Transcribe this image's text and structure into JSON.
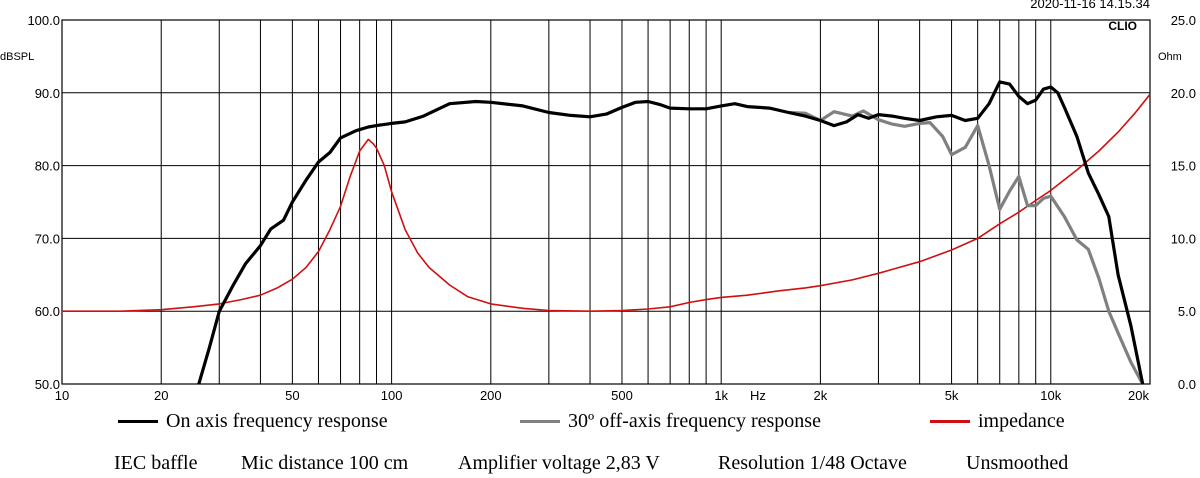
{
  "header": {
    "timestamp": "2020-11-16 14.15.34",
    "brand": "CLIO"
  },
  "chart_data": {
    "type": "line",
    "x_scale": "log",
    "xlim": [
      10,
      20000
    ],
    "ylim_left": [
      50,
      100
    ],
    "ylim_right": [
      0,
      25
    ],
    "left_unit": "dBSPL",
    "right_unit": "Ohm",
    "x_unit": "Hz",
    "grid": true,
    "y_ticks_left": [
      "50.0",
      "60.0",
      "70.0",
      "80.0",
      "90.0",
      "100.0"
    ],
    "y_ticks_right": [
      "0.0",
      "5.0",
      "10.0",
      "15.0",
      "20.0",
      "25.0"
    ],
    "x_ticks": [
      {
        "f": 10,
        "label": "10"
      },
      {
        "f": 20,
        "label": "20"
      },
      {
        "f": 50,
        "label": "50"
      },
      {
        "f": 100,
        "label": "100"
      },
      {
        "f": 200,
        "label": "200"
      },
      {
        "f": 500,
        "label": "500"
      },
      {
        "f": 1000,
        "label": "1k"
      },
      {
        "f": 2000,
        "label": "2k"
      },
      {
        "f": 5000,
        "label": "5k"
      },
      {
        "f": 10000,
        "label": "10k"
      },
      {
        "f": 20000,
        "label": "20k"
      }
    ],
    "series": [
      {
        "name": "On axis frequency response",
        "color": "#000000",
        "axis": "left",
        "points": [
          [
            26,
            50
          ],
          [
            28,
            55
          ],
          [
            30,
            60
          ],
          [
            33,
            63.5
          ],
          [
            36,
            66.5
          ],
          [
            40,
            69
          ],
          [
            43,
            71.3
          ],
          [
            47,
            72.5
          ],
          [
            50,
            75
          ],
          [
            55,
            78
          ],
          [
            60,
            80.5
          ],
          [
            65,
            81.8
          ],
          [
            70,
            83.8
          ],
          [
            78,
            84.8
          ],
          [
            85,
            85.3
          ],
          [
            90,
            85.5
          ],
          [
            100,
            85.8
          ],
          [
            110,
            86
          ],
          [
            125,
            86.8
          ],
          [
            150,
            88.5
          ],
          [
            180,
            88.8
          ],
          [
            200,
            88.7
          ],
          [
            250,
            88.2
          ],
          [
            300,
            87.3
          ],
          [
            350,
            86.9
          ],
          [
            400,
            86.7
          ],
          [
            450,
            87.1
          ],
          [
            500,
            88
          ],
          [
            550,
            88.7
          ],
          [
            600,
            88.8
          ],
          [
            650,
            88.4
          ],
          [
            700,
            87.9
          ],
          [
            800,
            87.8
          ],
          [
            900,
            87.8
          ],
          [
            1000,
            88.2
          ],
          [
            1100,
            88.5
          ],
          [
            1200,
            88.1
          ],
          [
            1400,
            87.9
          ],
          [
            1600,
            87.3
          ],
          [
            1800,
            86.8
          ],
          [
            2000,
            86.2
          ],
          [
            2200,
            85.5
          ],
          [
            2400,
            86
          ],
          [
            2600,
            87
          ],
          [
            2800,
            86.5
          ],
          [
            3000,
            87
          ],
          [
            3300,
            86.8
          ],
          [
            3600,
            86.5
          ],
          [
            4000,
            86.2
          ],
          [
            4500,
            86.7
          ],
          [
            5000,
            86.9
          ],
          [
            5500,
            86.2
          ],
          [
            6000,
            86.5
          ],
          [
            6500,
            88.5
          ],
          [
            7000,
            91.5
          ],
          [
            7500,
            91.2
          ],
          [
            8000,
            89.5
          ],
          [
            8500,
            88.5
          ],
          [
            9000,
            89
          ],
          [
            9500,
            90.5
          ],
          [
            10000,
            90.8
          ],
          [
            10500,
            90
          ],
          [
            11000,
            88
          ],
          [
            12000,
            84
          ],
          [
            13000,
            79
          ],
          [
            14000,
            76
          ],
          [
            15000,
            73
          ],
          [
            16000,
            65
          ],
          [
            17500,
            58
          ],
          [
            19000,
            50
          ]
        ]
      },
      {
        "name": "30º off-axis frequency response",
        "color": "#808080",
        "axis": "left",
        "points": [
          [
            1600,
            87.3
          ],
          [
            1800,
            87.2
          ],
          [
            2000,
            86.2
          ],
          [
            2200,
            87.4
          ],
          [
            2500,
            86.8
          ],
          [
            2700,
            87.5
          ],
          [
            3000,
            86.3
          ],
          [
            3300,
            85.7
          ],
          [
            3600,
            85.4
          ],
          [
            4000,
            85.8
          ],
          [
            4300,
            85.9
          ],
          [
            4700,
            84
          ],
          [
            5000,
            81.5
          ],
          [
            5500,
            82.5
          ],
          [
            6000,
            85.5
          ],
          [
            6500,
            80
          ],
          [
            7000,
            74
          ],
          [
            7500,
            76.5
          ],
          [
            8000,
            78.5
          ],
          [
            8500,
            74.5
          ],
          [
            9000,
            74.5
          ],
          [
            9500,
            75.5
          ],
          [
            10000,
            75.8
          ],
          [
            11000,
            73
          ],
          [
            12000,
            69.8
          ],
          [
            13000,
            68.5
          ],
          [
            14000,
            64.5
          ],
          [
            15000,
            60
          ],
          [
            16000,
            57
          ],
          [
            17500,
            53
          ],
          [
            19000,
            50
          ]
        ]
      },
      {
        "name": "impedance",
        "color": "#d01010",
        "axis": "right",
        "points": [
          [
            10,
            5
          ],
          [
            15,
            5
          ],
          [
            20,
            5.1
          ],
          [
            25,
            5.3
          ],
          [
            30,
            5.5
          ],
          [
            35,
            5.8
          ],
          [
            40,
            6.1
          ],
          [
            45,
            6.6
          ],
          [
            50,
            7.2
          ],
          [
            55,
            8
          ],
          [
            60,
            9.1
          ],
          [
            65,
            10.6
          ],
          [
            70,
            12.2
          ],
          [
            75,
            14.3
          ],
          [
            80,
            16
          ],
          [
            85,
            16.8
          ],
          [
            88,
            16.5
          ],
          [
            90,
            16.2
          ],
          [
            95,
            15
          ],
          [
            100,
            13.2
          ],
          [
            110,
            10.6
          ],
          [
            120,
            9
          ],
          [
            130,
            8
          ],
          [
            150,
            6.8
          ],
          [
            170,
            6
          ],
          [
            200,
            5.5
          ],
          [
            250,
            5.2
          ],
          [
            300,
            5.05
          ],
          [
            400,
            5
          ],
          [
            500,
            5.05
          ],
          [
            600,
            5.15
          ],
          [
            700,
            5.3
          ],
          [
            800,
            5.6
          ],
          [
            900,
            5.8
          ],
          [
            1000,
            5.95
          ],
          [
            1200,
            6.1
          ],
          [
            1500,
            6.4
          ],
          [
            1800,
            6.6
          ],
          [
            2000,
            6.75
          ],
          [
            2500,
            7.15
          ],
          [
            3000,
            7.6
          ],
          [
            4000,
            8.4
          ],
          [
            5000,
            9.2
          ],
          [
            6000,
            10
          ],
          [
            7000,
            11
          ],
          [
            8000,
            11.8
          ],
          [
            9000,
            12.6
          ],
          [
            10000,
            13.3
          ],
          [
            12000,
            14.7
          ],
          [
            14000,
            16
          ],
          [
            16000,
            17.3
          ],
          [
            18000,
            18.6
          ],
          [
            20000,
            19.9
          ]
        ]
      }
    ]
  },
  "legend": {
    "on_axis": "On axis frequency response",
    "off_axis": "30º off-axis frequency response",
    "impedance": "impedance"
  },
  "footer": {
    "baffle": "IEC baffle",
    "mic_distance": "Mic distance 100 cm",
    "amp_voltage": "Amplifier voltage 2,83 V",
    "resolution": "Resolution 1/48 Octave",
    "smoothing": "Unsmoothed"
  }
}
